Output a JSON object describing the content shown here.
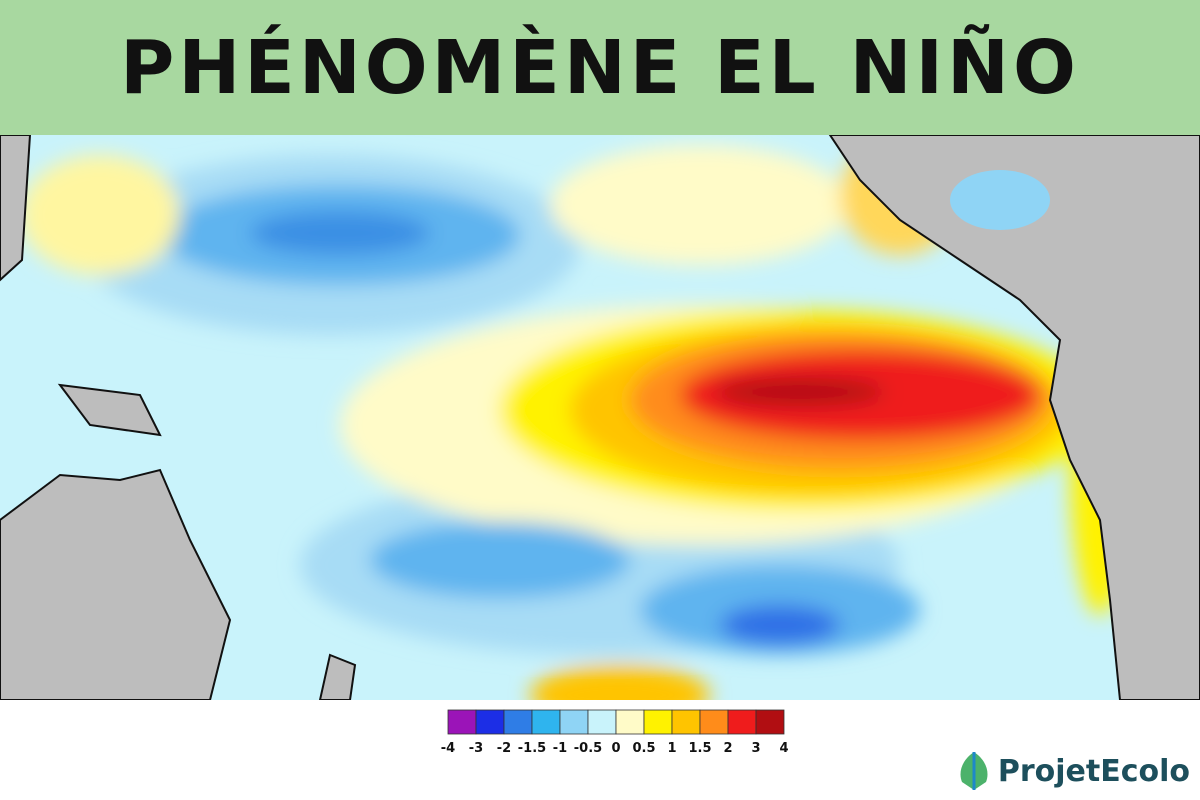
{
  "header": {
    "title": "PHÉNOMÈNE EL NIÑO"
  },
  "legend": {
    "ticks": [
      -4,
      -3,
      -2,
      -1.5,
      -1,
      -0.5,
      0,
      0.5,
      1,
      1.5,
      2,
      3,
      4
    ],
    "colors": [
      "#9b14b8",
      "#1c2ee6",
      "#2f7de6",
      "#2fb4ee",
      "#8fd4f5",
      "#c9f3fb",
      "#fffbc8",
      "#fff200",
      "#ffc400",
      "#ff8c1a",
      "#ef1c1c",
      "#b10e12"
    ]
  },
  "logo": {
    "text": "ProjetEcolo"
  }
}
